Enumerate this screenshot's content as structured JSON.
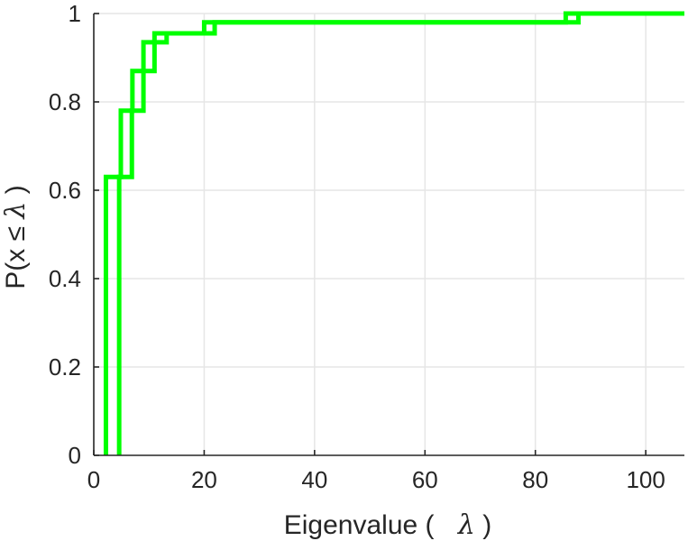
{
  "chart_data": {
    "type": "line",
    "title": "",
    "xlabel": "Eigenvalue (",
    "xlabel_symbol": "λ",
    "xlabel_close": ")",
    "ylabel": "P(x ≤ ",
    "ylabel_symbol": "λ",
    "ylabel_close": ")",
    "xlim": [
      0,
      107
    ],
    "ylim": [
      0,
      1
    ],
    "xticks": [
      0,
      20,
      40,
      60,
      80,
      100
    ],
    "xtick_labels": [
      "0",
      "20",
      "40",
      "60",
      "80",
      "100"
    ],
    "yticks": [
      0,
      0.2,
      0.4,
      0.6,
      0.8,
      1
    ],
    "ytick_labels": [
      "0",
      "0.2",
      "0.4",
      "0.6",
      "0.8",
      "1"
    ],
    "grid": true,
    "legend": "none",
    "series": [
      {
        "color": "#00ff00",
        "step": true,
        "x": [
          2.2,
          4.9,
          7.0,
          9.0,
          11.0,
          21.9,
          87.8
        ],
        "y": [
          0.63,
          0.78,
          0.87,
          0.935,
          0.955,
          0.98,
          1.0
        ]
      },
      {
        "color": "#00ff00",
        "step": true,
        "x": [
          4.6,
          6.9,
          9.0,
          11.0,
          13.2,
          20.0,
          85.5
        ],
        "y": [
          0.63,
          0.78,
          0.87,
          0.935,
          0.955,
          0.98,
          1.0
        ]
      }
    ]
  }
}
